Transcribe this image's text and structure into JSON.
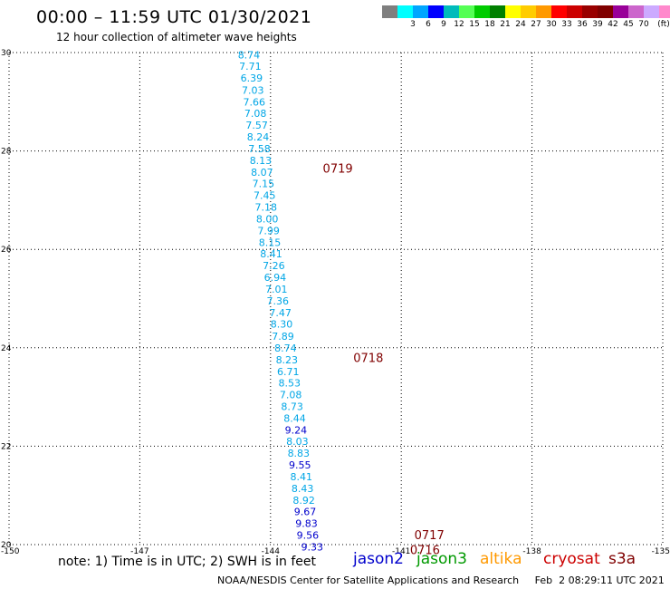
{
  "header": {
    "title": "00:00 – 11:59 UTC 01/30/2021",
    "subtitle": "12 hour collection of altimeter wave heights"
  },
  "color_scale": {
    "unit": "(ft)",
    "colors": [
      "#7f7f7f",
      "#00ffff",
      "#00a6ff",
      "#0000ff",
      "#00bbbb",
      "#55ff55",
      "#00cc00",
      "#008000",
      "#ffff00",
      "#ffcc00",
      "#ff9900",
      "#ff0000",
      "#cc0000",
      "#990000",
      "#800000",
      "#990099",
      "#cc66cc",
      "#ccaaff",
      "#ff88cc",
      "#000000"
    ],
    "labels": [
      "3",
      "6",
      "9",
      "12",
      "15",
      "18",
      "21",
      "24",
      "27",
      "30",
      "33",
      "36",
      "39",
      "42",
      "45",
      "70"
    ]
  },
  "map": {
    "lat_labels": [
      "30",
      "28",
      "26",
      "24",
      "22",
      "20"
    ],
    "lon_labels": [
      "-150",
      "-147",
      "-144",
      "-141",
      "-138",
      "-135"
    ],
    "time_labels": [
      {
        "text": "0719",
        "lon": -142.8,
        "lat": 27.65
      },
      {
        "text": "0718",
        "lon": -142.1,
        "lat": 23.8
      },
      {
        "text": "0717",
        "lon": -140.7,
        "lat": 20.2
      },
      {
        "text": "0716",
        "lon": -140.8,
        "lat": 19.9
      }
    ],
    "observations": [
      {
        "v": "8.74",
        "lon": -144.75,
        "lat": 29.95,
        "c": "#00a6e6"
      },
      {
        "v": "7.71",
        "lon": -144.72,
        "lat": 29.72,
        "c": "#00a6e6"
      },
      {
        "v": "6.39",
        "lon": -144.69,
        "lat": 29.48,
        "c": "#00a6e6"
      },
      {
        "v": "7.03",
        "lon": -144.66,
        "lat": 29.24,
        "c": "#00a6e6"
      },
      {
        "v": "7.66",
        "lon": -144.63,
        "lat": 29.0,
        "c": "#00a6e6"
      },
      {
        "v": "7.08",
        "lon": -144.6,
        "lat": 28.77,
        "c": "#00a6e6"
      },
      {
        "v": "7.57",
        "lon": -144.57,
        "lat": 28.53,
        "c": "#00a6e6"
      },
      {
        "v": "8.24",
        "lon": -144.54,
        "lat": 28.29,
        "c": "#00a6e6"
      },
      {
        "v": "7.58",
        "lon": -144.51,
        "lat": 28.05,
        "c": "#00a6e6"
      },
      {
        "v": "8.13",
        "lon": -144.48,
        "lat": 27.81,
        "c": "#00a6e6"
      },
      {
        "v": "8.07",
        "lon": -144.45,
        "lat": 27.57,
        "c": "#00a6e6"
      },
      {
        "v": "7.15",
        "lon": -144.42,
        "lat": 27.34,
        "c": "#00a6e6"
      },
      {
        "v": "7.45",
        "lon": -144.39,
        "lat": 27.1,
        "c": "#00a6e6"
      },
      {
        "v": "7.18",
        "lon": -144.36,
        "lat": 26.86,
        "c": "#00a6e6"
      },
      {
        "v": "8.00",
        "lon": -144.33,
        "lat": 26.62,
        "c": "#00a6e6"
      },
      {
        "v": "7.99",
        "lon": -144.3,
        "lat": 26.38,
        "c": "#00a6e6"
      },
      {
        "v": "8.15",
        "lon": -144.27,
        "lat": 26.14,
        "c": "#00a6e6"
      },
      {
        "v": "8.41",
        "lon": -144.24,
        "lat": 25.91,
        "c": "#00a6e6"
      },
      {
        "v": "7.26",
        "lon": -144.18,
        "lat": 25.67,
        "c": "#00a6e6"
      },
      {
        "v": "6.94",
        "lon": -144.15,
        "lat": 25.43,
        "c": "#00a6e6"
      },
      {
        "v": "7.01",
        "lon": -144.12,
        "lat": 25.19,
        "c": "#00a6e6"
      },
      {
        "v": "7.36",
        "lon": -144.09,
        "lat": 24.95,
        "c": "#00a6e6"
      },
      {
        "v": "7.47",
        "lon": -144.03,
        "lat": 24.71,
        "c": "#00a6e6"
      },
      {
        "v": "8.30",
        "lon": -144.0,
        "lat": 24.48,
        "c": "#00a6e6"
      },
      {
        "v": "7.89",
        "lon": -143.97,
        "lat": 24.24,
        "c": "#00a6e6"
      },
      {
        "v": "8.74",
        "lon": -143.91,
        "lat": 24.0,
        "c": "#00a6e6"
      },
      {
        "v": "8.23",
        "lon": -143.88,
        "lat": 23.76,
        "c": "#00a6e6"
      },
      {
        "v": "6.71",
        "lon": -143.85,
        "lat": 23.52,
        "c": "#00a6e6"
      },
      {
        "v": "8.53",
        "lon": -143.82,
        "lat": 23.29,
        "c": "#00a6e6"
      },
      {
        "v": "7.08",
        "lon": -143.79,
        "lat": 23.05,
        "c": "#00a6e6"
      },
      {
        "v": "8.73",
        "lon": -143.76,
        "lat": 22.81,
        "c": "#00a6e6"
      },
      {
        "v": "8.44",
        "lon": -143.7,
        "lat": 22.57,
        "c": "#00a6e6"
      },
      {
        "v": "9.24",
        "lon": -143.67,
        "lat": 22.33,
        "c": "#0000cc"
      },
      {
        "v": "8.03",
        "lon": -143.64,
        "lat": 22.1,
        "c": "#00a6e6"
      },
      {
        "v": "8.83",
        "lon": -143.61,
        "lat": 21.86,
        "c": "#00a6e6"
      },
      {
        "v": "9.55",
        "lon": -143.58,
        "lat": 21.62,
        "c": "#0000cc"
      },
      {
        "v": "8.41",
        "lon": -143.55,
        "lat": 21.38,
        "c": "#00a6e6"
      },
      {
        "v": "8.43",
        "lon": -143.52,
        "lat": 21.14,
        "c": "#00a6e6"
      },
      {
        "v": "8.92",
        "lon": -143.49,
        "lat": 20.9,
        "c": "#00a6e6"
      },
      {
        "v": "9.67",
        "lon": -143.46,
        "lat": 20.67,
        "c": "#0000cc"
      },
      {
        "v": "9.83",
        "lon": -143.43,
        "lat": 20.43,
        "c": "#0000cc"
      },
      {
        "v": "9.56",
        "lon": -143.4,
        "lat": 20.19,
        "c": "#0000cc"
      },
      {
        "v": "9.33",
        "lon": -143.3,
        "lat": 19.95,
        "c": "#0000cc"
      }
    ]
  },
  "footer": {
    "note": "note: 1) Time is in UTC; 2) SWH is in feet",
    "satellites": [
      {
        "name": "jason2",
        "color": "#0000cc"
      },
      {
        "name": "jason3",
        "color": "#009900"
      },
      {
        "name": "altika",
        "color": "#ff9900"
      },
      {
        "name": "cryosat",
        "color": "#cc0000"
      },
      {
        "name": "s3a",
        "color": "#800000"
      }
    ],
    "credit": "NOAA/NESDIS Center for Satellite Applications and Research     Feb  2 08:29:11 UTC 2021"
  }
}
